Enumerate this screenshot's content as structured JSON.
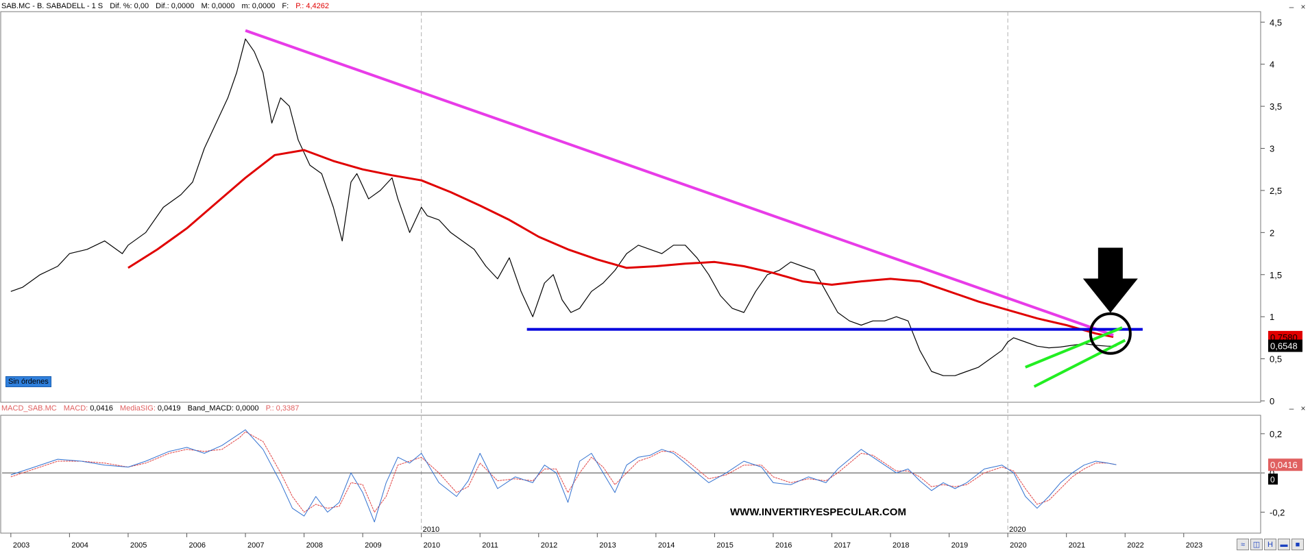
{
  "header": {
    "symbol": "SAB.MC - B. SABADELL -  1 S",
    "dif_pct": "Dif. %: 0,00",
    "dif": "Dif.: 0,0000",
    "max": "M: 0,0000",
    "min": "m: 0,0000",
    "f": "F:",
    "price": "P.: 4,4262"
  },
  "macd_header": {
    "name": "MACD_SAB.MC",
    "macd_label": "MACD:",
    "macd_value": "0,0416",
    "sig_label": "MediaSIG:",
    "sig_value": "0,0419",
    "band_label": "Band_MACD:",
    "band_value": "0,0000",
    "p": "P.: 0,3387"
  },
  "badge": "Sin órdenes",
  "watermark": "WWW.INVERTIRYESPECULAR.COM",
  "window_buttons": {
    "minimize": "–",
    "close": "×"
  },
  "colors": {
    "price": "#000000",
    "ma": "#e00000",
    "trendline": "#e83ce8",
    "support": "#0000dd",
    "channel": "#22ee22",
    "macd": "#3070d0",
    "signal": "#e04040",
    "grid": "#b0b0b0"
  },
  "chart_data": [
    {
      "type": "line",
      "title": "SAB.MC - B. SABADELL - 1 S",
      "y_axis_ticks": [
        "0",
        "0,5",
        "1",
        "1,5",
        "2",
        "2,5",
        "3",
        "3,5",
        "4",
        "4,5"
      ],
      "ylim": [
        0,
        4.6
      ],
      "x_year_labels": [
        "2003",
        "2004",
        "2005",
        "2006",
        "2007",
        "2008",
        "2009",
        "2010",
        "2011",
        "2012",
        "2013",
        "2014",
        "2015",
        "2016",
        "2017",
        "2018",
        "2019",
        "2020",
        "2021",
        "2022",
        "2023"
      ],
      "x_divider_labels": [
        "2010",
        "2020"
      ],
      "last_price_label": "0,6548",
      "ma_price_label": "0,7580",
      "series": [
        {
          "role": "price",
          "x": [
            2003.0,
            2003.2,
            2003.5,
            2003.8,
            2004.0,
            2004.3,
            2004.6,
            2004.9,
            2005.0,
            2005.3,
            2005.6,
            2005.9,
            2006.1,
            2006.3,
            2006.5,
            2006.7,
            2006.85,
            2007.0,
            2007.15,
            2007.3,
            2007.45,
            2007.6,
            2007.75,
            2007.9,
            2008.1,
            2008.3,
            2008.5,
            2008.65,
            2008.8,
            2008.9,
            2009.1,
            2009.3,
            2009.5,
            2009.6,
            2009.8,
            2010.0,
            2010.1,
            2010.3,
            2010.5,
            2010.7,
            2010.9,
            2011.1,
            2011.3,
            2011.5,
            2011.7,
            2011.9,
            2012.1,
            2012.25,
            2012.4,
            2012.55,
            2012.7,
            2012.9,
            2013.1,
            2013.3,
            2013.5,
            2013.7,
            2013.9,
            2014.1,
            2014.3,
            2014.5,
            2014.7,
            2014.9,
            2015.1,
            2015.3,
            2015.5,
            2015.7,
            2015.9,
            2016.1,
            2016.3,
            2016.5,
            2016.7,
            2016.9,
            2017.1,
            2017.3,
            2017.5,
            2017.7,
            2017.9,
            2018.1,
            2018.3,
            2018.5,
            2018.7,
            2018.9,
            2019.1,
            2019.3,
            2019.5,
            2019.7,
            2019.9,
            2020.0,
            2020.1,
            2020.3,
            2020.5,
            2020.7,
            2020.9,
            2021.1,
            2021.3,
            2021.5,
            2021.7,
            2021.85
          ],
          "y": [
            1.3,
            1.35,
            1.5,
            1.6,
            1.75,
            1.8,
            1.9,
            1.75,
            1.85,
            2.0,
            2.3,
            2.45,
            2.6,
            3.0,
            3.3,
            3.6,
            3.9,
            4.3,
            4.15,
            3.9,
            3.3,
            3.6,
            3.5,
            3.1,
            2.8,
            2.7,
            2.3,
            1.9,
            2.6,
            2.7,
            2.4,
            2.5,
            2.65,
            2.4,
            2.0,
            2.3,
            2.2,
            2.15,
            2.0,
            1.9,
            1.8,
            1.6,
            1.45,
            1.7,
            1.3,
            1.0,
            1.4,
            1.5,
            1.2,
            1.05,
            1.1,
            1.3,
            1.4,
            1.55,
            1.75,
            1.85,
            1.8,
            1.75,
            1.85,
            1.85,
            1.7,
            1.5,
            1.25,
            1.1,
            1.05,
            1.3,
            1.5,
            1.55,
            1.65,
            1.6,
            1.55,
            1.3,
            1.05,
            0.95,
            0.9,
            0.95,
            0.95,
            1.0,
            0.95,
            0.6,
            0.35,
            0.3,
            0.3,
            0.35,
            0.4,
            0.5,
            0.6,
            0.7,
            0.75,
            0.7,
            0.65,
            0.63,
            0.64,
            0.66,
            0.68,
            0.66,
            0.65,
            0.65
          ]
        },
        {
          "role": "moving_average",
          "x": [
            2005.0,
            2005.5,
            2006.0,
            2006.5,
            2007.0,
            2007.5,
            2008.0,
            2008.5,
            2009.0,
            2009.5,
            2010.0,
            2010.5,
            2011.0,
            2011.5,
            2012.0,
            2012.5,
            2013.0,
            2013.5,
            2014.0,
            2014.5,
            2015.0,
            2015.5,
            2016.0,
            2016.5,
            2017.0,
            2017.5,
            2018.0,
            2018.5,
            2019.0,
            2019.5,
            2020.0,
            2020.5,
            2021.0,
            2021.5,
            2021.8
          ],
          "y": [
            1.58,
            1.8,
            2.05,
            2.35,
            2.65,
            2.92,
            2.98,
            2.85,
            2.75,
            2.68,
            2.62,
            2.48,
            2.32,
            2.15,
            1.95,
            1.8,
            1.68,
            1.58,
            1.6,
            1.63,
            1.65,
            1.6,
            1.52,
            1.42,
            1.38,
            1.42,
            1.45,
            1.42,
            1.3,
            1.18,
            1.08,
            0.98,
            0.9,
            0.8,
            0.76
          ]
        }
      ],
      "annotations": [
        {
          "kind": "trendline",
          "from": [
            2007.0,
            4.4
          ],
          "to": [
            2021.8,
            0.78
          ]
        },
        {
          "kind": "support",
          "from": [
            2011.8,
            0.85
          ],
          "to": [
            2022.3,
            0.85
          ]
        },
        {
          "kind": "channel",
          "from": [
            2020.3,
            0.4
          ],
          "to": [
            2021.95,
            0.87
          ]
        },
        {
          "kind": "channel",
          "from": [
            2020.45,
            0.17
          ],
          "to": [
            2022.0,
            0.72
          ]
        },
        {
          "kind": "circle",
          "at": [
            2021.75,
            0.8
          ]
        },
        {
          "kind": "arrow_down",
          "at": [
            2021.75,
            1.82
          ]
        }
      ]
    },
    {
      "type": "line",
      "title": "MACD_SAB.MC",
      "y_axis_ticks": [
        "0,2",
        "0",
        "-0,2"
      ],
      "ylim": [
        -0.3,
        0.28
      ],
      "value_label": "0,0416",
      "zero_label": "0",
      "series": [
        {
          "role": "macd",
          "x": [
            2003.0,
            2003.4,
            2003.8,
            2004.2,
            2004.6,
            2005.0,
            2005.3,
            2005.7,
            2006.0,
            2006.3,
            2006.6,
            2006.9,
            2007.0,
            2007.3,
            2007.6,
            2007.8,
            2008.0,
            2008.2,
            2008.4,
            2008.6,
            2008.8,
            2009.0,
            2009.2,
            2009.4,
            2009.6,
            2009.8,
            2010.0,
            2010.3,
            2010.6,
            2010.8,
            2011.0,
            2011.3,
            2011.6,
            2011.9,
            2012.1,
            2012.3,
            2012.5,
            2012.7,
            2012.9,
            2013.1,
            2013.3,
            2013.5,
            2013.7,
            2013.9,
            2014.1,
            2014.3,
            2014.5,
            2014.7,
            2014.9,
            2015.2,
            2015.5,
            2015.8,
            2016.0,
            2016.3,
            2016.6,
            2016.9,
            2017.1,
            2017.3,
            2017.5,
            2017.7,
            2017.9,
            2018.1,
            2018.3,
            2018.5,
            2018.7,
            2018.9,
            2019.1,
            2019.3,
            2019.6,
            2019.9,
            2020.1,
            2020.3,
            2020.5,
            2020.7,
            2020.9,
            2021.1,
            2021.3,
            2021.5,
            2021.7,
            2021.85
          ],
          "y": [
            -0.01,
            0.03,
            0.07,
            0.06,
            0.04,
            0.03,
            0.06,
            0.11,
            0.13,
            0.1,
            0.14,
            0.2,
            0.22,
            0.12,
            -0.05,
            -0.18,
            -0.22,
            -0.12,
            -0.2,
            -0.15,
            0.0,
            -0.1,
            -0.25,
            -0.05,
            0.08,
            0.05,
            0.1,
            -0.05,
            -0.12,
            -0.04,
            0.1,
            -0.08,
            -0.02,
            -0.05,
            0.04,
            0.0,
            -0.15,
            0.06,
            0.1,
            0.0,
            -0.1,
            0.04,
            0.08,
            0.09,
            0.12,
            0.1,
            0.05,
            0.0,
            -0.05,
            0.0,
            0.06,
            0.03,
            -0.05,
            -0.06,
            -0.02,
            -0.05,
            0.02,
            0.07,
            0.12,
            0.08,
            0.04,
            0.0,
            0.02,
            -0.04,
            -0.09,
            -0.05,
            -0.08,
            -0.05,
            0.02,
            0.04,
            0.0,
            -0.12,
            -0.18,
            -0.12,
            -0.05,
            0.0,
            0.04,
            0.06,
            0.05,
            0.042
          ]
        },
        {
          "role": "signal",
          "x": [
            2003.0,
            2003.4,
            2003.8,
            2004.2,
            2004.6,
            2005.0,
            2005.3,
            2005.7,
            2006.0,
            2006.3,
            2006.6,
            2006.9,
            2007.0,
            2007.3,
            2007.6,
            2007.8,
            2008.0,
            2008.2,
            2008.4,
            2008.6,
            2008.8,
            2009.0,
            2009.2,
            2009.4,
            2009.6,
            2009.8,
            2010.0,
            2010.3,
            2010.6,
            2010.8,
            2011.0,
            2011.3,
            2011.6,
            2011.9,
            2012.1,
            2012.3,
            2012.5,
            2012.7,
            2012.9,
            2013.1,
            2013.3,
            2013.5,
            2013.7,
            2013.9,
            2014.1,
            2014.3,
            2014.5,
            2014.7,
            2014.9,
            2015.2,
            2015.5,
            2015.8,
            2016.0,
            2016.3,
            2016.6,
            2016.9,
            2017.1,
            2017.3,
            2017.5,
            2017.7,
            2017.9,
            2018.1,
            2018.3,
            2018.5,
            2018.7,
            2018.9,
            2019.1,
            2019.3,
            2019.6,
            2019.9,
            2020.1,
            2020.3,
            2020.5,
            2020.7,
            2020.9,
            2021.1,
            2021.3,
            2021.5,
            2021.7,
            2021.85
          ],
          "y": [
            -0.02,
            0.02,
            0.06,
            0.06,
            0.05,
            0.03,
            0.05,
            0.1,
            0.12,
            0.11,
            0.12,
            0.18,
            0.21,
            0.16,
            0.0,
            -0.12,
            -0.2,
            -0.16,
            -0.18,
            -0.17,
            -0.05,
            -0.06,
            -0.2,
            -0.12,
            0.04,
            0.06,
            0.08,
            0.0,
            -0.1,
            -0.07,
            0.05,
            -0.04,
            -0.03,
            -0.04,
            0.02,
            0.02,
            -0.1,
            0.0,
            0.08,
            0.03,
            -0.06,
            0.0,
            0.06,
            0.08,
            0.11,
            0.11,
            0.07,
            0.02,
            -0.03,
            -0.01,
            0.04,
            0.04,
            -0.02,
            -0.05,
            -0.03,
            -0.04,
            0.0,
            0.05,
            0.1,
            0.09,
            0.05,
            0.01,
            0.01,
            -0.02,
            -0.07,
            -0.06,
            -0.07,
            -0.06,
            0.0,
            0.03,
            0.01,
            -0.08,
            -0.16,
            -0.14,
            -0.08,
            -0.02,
            0.02,
            0.05,
            0.05,
            0.042
          ]
        }
      ]
    }
  ]
}
